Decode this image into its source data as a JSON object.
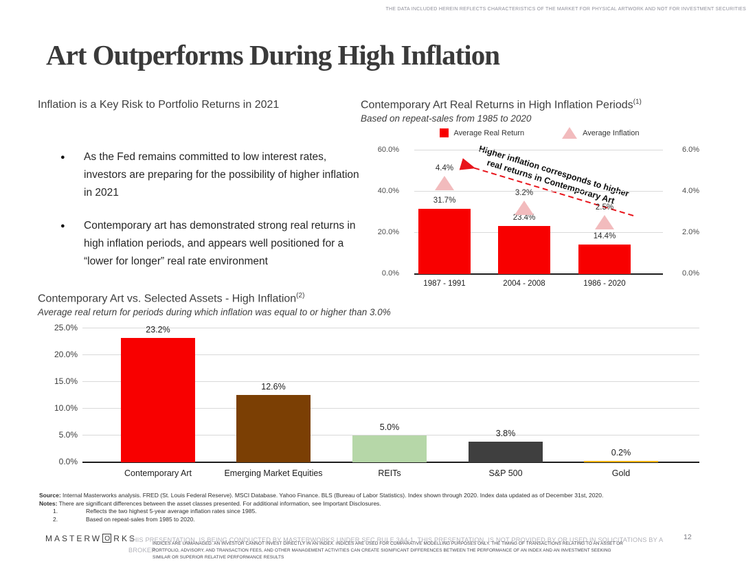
{
  "top_disclaimer": "THE DATA INCLUDED HEREIN REFLECTS CHARACTERISTICS OF THE MARKET FOR PHYSICAL ARTWORK AND NOT FOR INVESTMENT SECURITIES",
  "title": "Art Outperforms During High Inflation",
  "left_panel": {
    "heading": "Inflation is a Key Risk to Portfolio Returns in 2021",
    "bullet_glyph": "●",
    "bullets": [
      "As the Fed remains committed to low interest rates, investors are preparing for the possibility of higher inflation in 2021",
      "Contemporary art has demonstrated strong real returns in high inflation periods, and appears well positioned for a “lower for longer” real rate environment"
    ]
  },
  "chart_data": [
    {
      "id": "inflation-periods-chart",
      "type": "bar",
      "title": "Contemporary Art Real Returns in High Inflation Periods",
      "title_superscript": "(1)",
      "subtitle": "Based on repeat-sales from 1985 to 2020",
      "categories": [
        "1987 - 1991",
        "2004 - 2008",
        "1986 - 2020"
      ],
      "series": [
        {
          "name": "Average Real Return",
          "mark": "bar",
          "axis": "left",
          "color": "#f80000",
          "values": [
            31.7,
            23.4,
            14.4
          ],
          "labels": [
            "31.7%",
            "23.4%",
            "14.4%"
          ]
        },
        {
          "name": "Average Inflation",
          "mark": "triangle",
          "axis": "right",
          "color": "#f2bbbd",
          "values": [
            4.4,
            3.2,
            2.5
          ],
          "labels": [
            "4.4%",
            "3.2%",
            "2.5%"
          ]
        }
      ],
      "left_axis": {
        "tick_values": [
          0,
          20,
          40,
          60
        ],
        "tick_labels": [
          "0.0%",
          "20.0%",
          "40.0%",
          "60.0%"
        ],
        "min": 0,
        "max": 60
      },
      "right_axis": {
        "tick_values": [
          0,
          2,
          4,
          6
        ],
        "tick_labels": [
          "0.0%",
          "2.0%",
          "4.0%",
          "6.0%"
        ],
        "min": 0,
        "max": 6
      },
      "legend": [
        {
          "label": "Average Real Return",
          "swatch": "square",
          "color": "#f80000"
        },
        {
          "label": "Average Inflation",
          "swatch": "triangle",
          "color": "#f2bbbd"
        }
      ],
      "annotation": {
        "text_line1": "Higher inflation corresponds to higher",
        "text_line2": "real returns in Contemporary Art",
        "arrow_color": "#e8141b",
        "arrow_style": "dashed"
      },
      "grid": true,
      "legend_position": "top"
    },
    {
      "id": "asset-comparison-chart",
      "type": "bar",
      "title": "Contemporary Art vs. Selected Assets - High Inflation",
      "title_superscript": "(2)",
      "subtitle": "Average real return for periods during which inflation was equal to or higher than 3.0%",
      "categories": [
        "Contemporary Art",
        "Emerging Market Equities",
        "REITs",
        "S&P 500",
        "Gold"
      ],
      "values": [
        23.2,
        12.6,
        5.0,
        3.8,
        0.2
      ],
      "labels": [
        "23.2%",
        "12.6%",
        "5.0%",
        "3.8%",
        "0.2%"
      ],
      "colors": [
        "#f80000",
        "#7b3f04",
        "#b6d7a8",
        "#3f3f3f",
        "#f2b411"
      ],
      "y_axis": {
        "tick_values": [
          0,
          5,
          10,
          15,
          20,
          25
        ],
        "tick_labels": [
          "0.0%",
          "5.0%",
          "10.0%",
          "15.0%",
          "20.0%",
          "25.0%"
        ],
        "min": 0,
        "max": 25
      },
      "grid": true
    }
  ],
  "footnotes": {
    "source_label": "Source:",
    "source_text": " Internal Masterworks analysis. FRED (St. Louis Federal Reserve). MSCI Database. Yahoo Finance. BLS (Bureau of Labor Statistics). Index shown through 2020. Index data updated as of December 31st, 2020.",
    "notes_label": "Notes:",
    "notes_text": " There are significant differences between the asset classes presented. For additional information, see Important Disclosures.",
    "numbered": [
      {
        "num": "1.",
        "text": "Reflects the two highest 5-year average inflation rates since 1985."
      },
      {
        "num": "2.",
        "text": "Based on repeat-sales from 1985 to 2020."
      }
    ]
  },
  "footer": {
    "logo_prefix": "MASTERW",
    "logo_o": "O",
    "logo_suffix": "RKS",
    "disclaimer_large_line1": "THIS PRESENTATION, IS BEING CONDUCTED BY MASTERWORKS UNDER SEC RULE 3A4-1. THIS PRESENTATION, IS NOT PROVIDED BY OR USED IN SOLICITATIONS BY A",
    "disclaimer_large_line2": "BROKER",
    "disclaimer_small_line1": "INDICES ARE UNMANAGED. AN INVESTOR CANNOT INVEST DIRECTLY IN AN INDEX. INDICES ARE USED FOR COMPARATIVE MODELLING PURPOSES ONLY. THE TIMING OF TRANSACTIONS RELATING TO AN ASSET OR",
    "disclaimer_small_line2": "PORTFOLIO, ADVISORY, AND TRANSACTION FEES, AND OTHER MANAGEMENT ACTIVITIES CAN CREATE SIGNIFICANT DIFFERENCES BETWEEN THE PERFORMANCE OF AN INDEX AND AN INVESTMENT SEEKING",
    "disclaimer_small_line3": "SIMILAR OR SUPERIOR RELATIVE PERFORMANCE RESULTS",
    "page_number": "12"
  }
}
